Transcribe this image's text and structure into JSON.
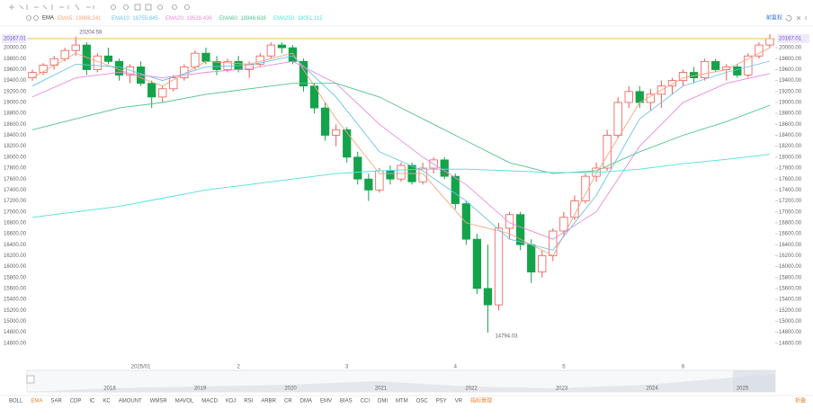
{
  "toolbar": {
    "indicator": "EMA",
    "adjust": "前复权"
  },
  "chart_data": {
    "type": "candlestick",
    "up_color": "#ee5a52",
    "down_color": "#14a34a",
    "categories": [
      null,
      null,
      null,
      null,
      null,
      null,
      null,
      null,
      null,
      null,
      "2025/01",
      null,
      null,
      null,
      null,
      null,
      null,
      null,
      null,
      "2",
      null,
      null,
      null,
      null,
      null,
      null,
      null,
      null,
      null,
      "3",
      null,
      null,
      null,
      null,
      null,
      null,
      null,
      null,
      null,
      "4",
      null,
      null,
      null,
      null,
      null,
      null,
      null,
      null,
      null,
      "5",
      null,
      null,
      null,
      null,
      null,
      null,
      null,
      null,
      null,
      null,
      "6",
      null,
      null,
      null,
      null,
      null,
      null,
      null,
      null
    ],
    "ohlc": [
      [
        19450,
        19600,
        19400,
        19550
      ],
      [
        19550,
        19720,
        19500,
        19680
      ],
      [
        19680,
        19850,
        19600,
        19800
      ],
      [
        19800,
        20000,
        19750,
        19950
      ],
      [
        19950,
        20204.58,
        19850,
        20050
      ],
      [
        20050,
        20100,
        19500,
        19600
      ],
      [
        19600,
        19900,
        19550,
        19850
      ],
      [
        19850,
        20000,
        19700,
        19750
      ],
      [
        19750,
        19800,
        19400,
        19500
      ],
      [
        19500,
        19700,
        19350,
        19650
      ],
      [
        19650,
        19750,
        19300,
        19350
      ],
      [
        19350,
        19400,
        18900,
        19100
      ],
      [
        19100,
        19300,
        19000,
        19250
      ],
      [
        19250,
        19500,
        19200,
        19450
      ],
      [
        19450,
        19700,
        19400,
        19650
      ],
      [
        19650,
        19950,
        19600,
        19900
      ],
      [
        19900,
        20000,
        19700,
        19750
      ],
      [
        19750,
        19850,
        19500,
        19600
      ],
      [
        19600,
        19800,
        19550,
        19750
      ],
      [
        19750,
        19850,
        19550,
        19600
      ],
      [
        19600,
        19750,
        19450,
        19700
      ],
      [
        19700,
        19900,
        19650,
        19850
      ],
      [
        19850,
        20100,
        19800,
        20050
      ],
      [
        20050,
        20100,
        19900,
        20000
      ],
      [
        20000,
        20050,
        19700,
        19750
      ],
      [
        19750,
        19800,
        19200,
        19300
      ],
      [
        19300,
        19350,
        18800,
        18900
      ],
      [
        18900,
        19000,
        18300,
        18400
      ],
      [
        18400,
        18600,
        18200,
        18500
      ],
      [
        18500,
        18550,
        17900,
        18000
      ],
      [
        18000,
        18100,
        17500,
        17600
      ],
      [
        17600,
        17700,
        17200,
        17400
      ],
      [
        17400,
        17800,
        17350,
        17750
      ],
      [
        17750,
        17850,
        17500,
        17600
      ],
      [
        17600,
        17900,
        17550,
        17850
      ],
      [
        17850,
        17900,
        17500,
        17550
      ],
      [
        17550,
        17900,
        17500,
        17800
      ],
      [
        17800,
        18000,
        17700,
        17950
      ],
      [
        17950,
        18000,
        17600,
        17650
      ],
      [
        17650,
        17700,
        17050,
        17150
      ],
      [
        17150,
        17200,
        16400,
        16500
      ],
      [
        16500,
        16600,
        15500,
        15600
      ],
      [
        15600,
        16400,
        14794.03,
        15300
      ],
      [
        15300,
        16800,
        15200,
        16700
      ],
      [
        16700,
        17000,
        16500,
        16950
      ],
      [
        16950,
        17000,
        16300,
        16400
      ],
      [
        16400,
        16500,
        15700,
        15900
      ],
      [
        15900,
        16300,
        15800,
        16200
      ],
      [
        16200,
        16700,
        16100,
        16650
      ],
      [
        16650,
        17000,
        16550,
        16900
      ],
      [
        16900,
        17300,
        16850,
        17200
      ],
      [
        17200,
        17700,
        17150,
        17650
      ],
      [
        17650,
        17900,
        17550,
        17800
      ],
      [
        17800,
        18500,
        17750,
        18400
      ],
      [
        18400,
        19100,
        18350,
        19000
      ],
      [
        19000,
        19300,
        18900,
        19200
      ],
      [
        19200,
        19300,
        18900,
        19000
      ],
      [
        19000,
        19250,
        18850,
        19150
      ],
      [
        19150,
        19400,
        18900,
        19300
      ],
      [
        19300,
        19450,
        19150,
        19400
      ],
      [
        19400,
        19600,
        19300,
        19550
      ],
      [
        19550,
        19650,
        19350,
        19450
      ],
      [
        19450,
        19800,
        19400,
        19750
      ],
      [
        19750,
        19800,
        19550,
        19600
      ],
      [
        19600,
        19700,
        19400,
        19650
      ],
      [
        19650,
        19700,
        19450,
        19500
      ],
      [
        19500,
        19900,
        19450,
        19850
      ],
      [
        19850,
        20100,
        19800,
        20050
      ],
      [
        20050,
        20250,
        20000,
        20167.01
      ]
    ],
    "series": [
      {
        "name": "EMA5:",
        "color": "#f4a582",
        "x": [
          0,
          4,
          8,
          12,
          16,
          20,
          24,
          28,
          32,
          36,
          40,
          44,
          48,
          52,
          56,
          60,
          64,
          68
        ],
        "values": [
          19450,
          19900,
          19600,
          19300,
          19750,
          19700,
          19900,
          18700,
          17700,
          17700,
          16800,
          16600,
          16200,
          17700,
          19000,
          19450,
          19600,
          19998.241
        ]
      },
      {
        "name": "EMA10:",
        "color": "#6cc3e8",
        "x": [
          0,
          4,
          8,
          12,
          16,
          20,
          24,
          28,
          32,
          36,
          40,
          44,
          48,
          52,
          56,
          60,
          64,
          68
        ],
        "values": [
          19300,
          19700,
          19650,
          19400,
          19650,
          19680,
          19850,
          19100,
          18100,
          17750,
          17200,
          16500,
          16300,
          17300,
          18700,
          19300,
          19550,
          19755.845
        ]
      },
      {
        "name": "EMA20:",
        "color": "#e88ad8",
        "x": [
          0,
          4,
          8,
          12,
          16,
          20,
          24,
          28,
          32,
          36,
          40,
          44,
          48,
          52,
          56,
          60,
          64,
          68
        ],
        "values": [
          19100,
          19450,
          19550,
          19450,
          19550,
          19620,
          19750,
          19350,
          18600,
          18000,
          17500,
          16800,
          16500,
          17000,
          18200,
          19000,
          19350,
          19528.436
        ]
      },
      {
        "name": "EMA60:",
        "color": "#52c48a",
        "x": [
          0,
          4,
          8,
          12,
          16,
          20,
          24,
          28,
          32,
          36,
          40,
          44,
          48,
          52,
          56,
          60,
          64,
          68
        ],
        "values": [
          18500,
          18700,
          18900,
          19000,
          19150,
          19250,
          19350,
          19350,
          19100,
          18700,
          18300,
          17900,
          17700,
          17750,
          18100,
          18400,
          18650,
          18946.638
        ]
      },
      {
        "name": "EMA250:",
        "color": "#4fe0e0",
        "x": [
          0,
          4,
          8,
          12,
          16,
          20,
          24,
          28,
          32,
          36,
          40,
          44,
          48,
          52,
          56,
          60,
          64,
          68
        ],
        "values": [
          16900,
          17000,
          17100,
          17250,
          17400,
          17500,
          17600,
          17700,
          17750,
          17780,
          17780,
          17750,
          17720,
          17720,
          17780,
          17880,
          17960,
          18051.115
        ]
      }
    ],
    "ylim": [
      14300,
      20380
    ],
    "yticks": [
      {
        "value": 14600,
        "label": "14600.00"
      },
      {
        "value": 14800,
        "label": "14800.00"
      },
      {
        "value": 15000,
        "label": "15000.00"
      },
      {
        "value": 15200,
        "label": "15200.00"
      },
      {
        "value": 15400,
        "label": "15400.00"
      },
      {
        "value": 15600,
        "label": "15600.00"
      },
      {
        "value": 15800,
        "label": "15800.00"
      },
      {
        "value": 16000,
        "label": "16000.00"
      },
      {
        "value": 16200,
        "label": "16200.00"
      },
      {
        "value": 16400,
        "label": "16400.00"
      },
      {
        "value": 16600,
        "label": "16600.00"
      },
      {
        "value": 16800,
        "label": "16800.00"
      },
      {
        "value": 17000,
        "label": "17000.00"
      },
      {
        "value": 17200,
        "label": "17200.00"
      },
      {
        "value": 17400,
        "label": "17400.00"
      },
      {
        "value": 17600,
        "label": "17600.00"
      },
      {
        "value": 17800,
        "label": "17800.00"
      },
      {
        "value": 18000,
        "label": "18000.00"
      },
      {
        "value": 18200,
        "label": "18200.00"
      },
      {
        "value": 18400,
        "label": "18400.00"
      },
      {
        "value": 18600,
        "label": "18600.00"
      },
      {
        "value": 18800,
        "label": "18800.00"
      },
      {
        "value": 19000,
        "label": "19000.00"
      },
      {
        "value": 19200,
        "label": "19200.00"
      },
      {
        "value": 19400,
        "label": "19400.00"
      },
      {
        "value": 19600,
        "label": "19600.00"
      },
      {
        "value": 19800,
        "label": "19800.00"
      },
      {
        "value": 20000,
        "label": "20000.00"
      }
    ],
    "grid": false
  },
  "navigator": {
    "labels": [
      "2018",
      "2019",
      "2020",
      "2021",
      "2022",
      "2023",
      "2024",
      "2025"
    ]
  },
  "indicators": [
    "BOLL",
    "EMA",
    "SAR",
    "CDP",
    "IC",
    "KC",
    "AMOUNT",
    "WMSR",
    "MAVOL",
    "MACD",
    "KDJ",
    "RSI",
    "ARBR",
    "CR",
    "DMA",
    "EMV",
    "BIAS",
    "CCI",
    "DMI",
    "MTM",
    "OSC",
    "PSY",
    "VR",
    "指标管理"
  ],
  "collapse": "折叠"
}
